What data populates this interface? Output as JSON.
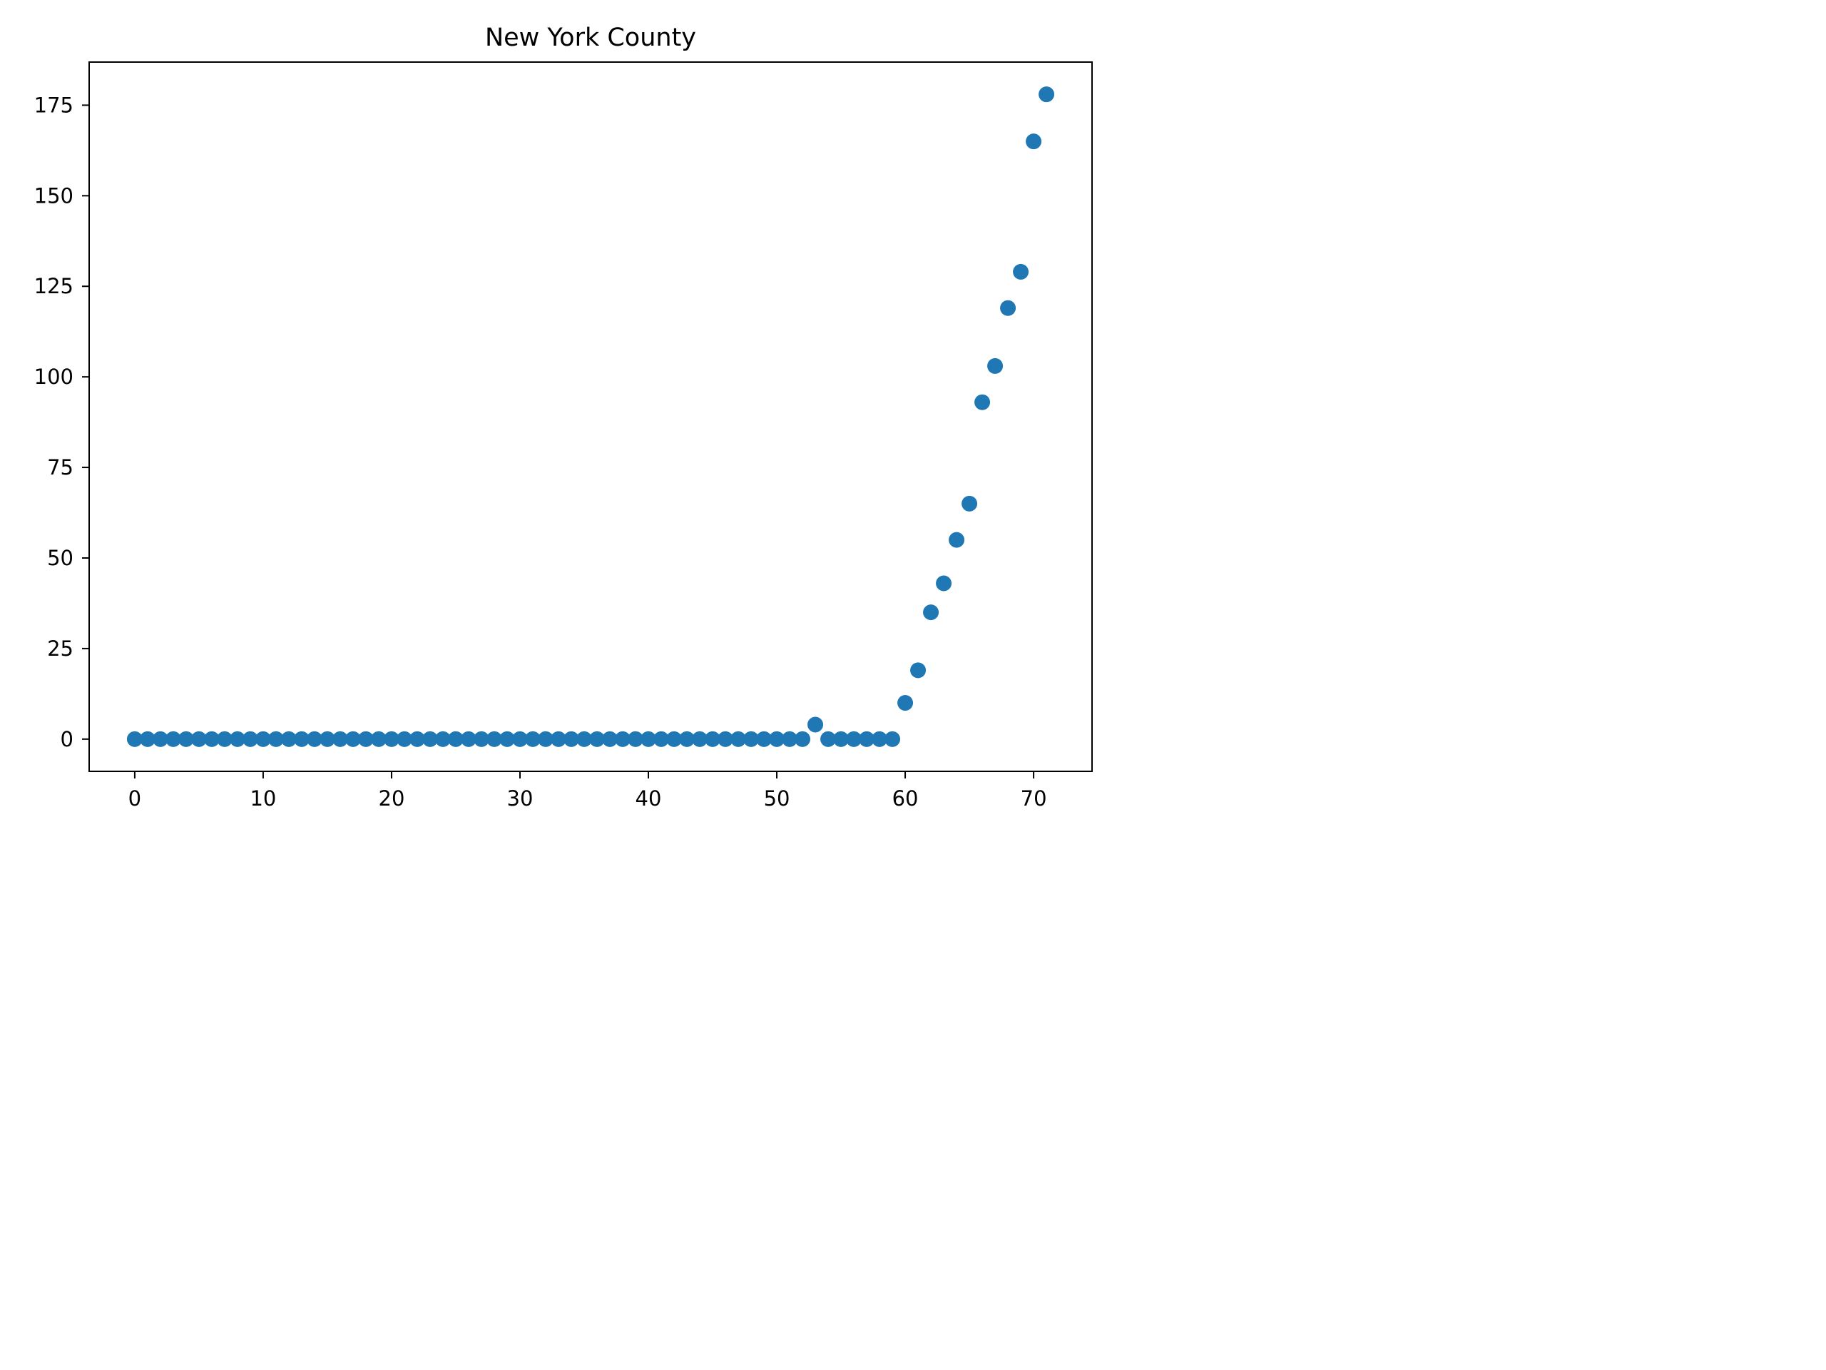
{
  "chart_data": {
    "type": "scatter",
    "title": "New York County",
    "xlabel": "",
    "ylabel": "",
    "xlim": [
      -3.55,
      74.55
    ],
    "ylim": [
      -8.9,
      186.9
    ],
    "xticks": [
      0,
      10,
      20,
      30,
      40,
      50,
      60,
      70
    ],
    "yticks": [
      0,
      25,
      50,
      75,
      100,
      125,
      150,
      175
    ],
    "grid": false,
    "color": "#1f77b4",
    "x": [
      0,
      1,
      2,
      3,
      4,
      5,
      6,
      7,
      8,
      9,
      10,
      11,
      12,
      13,
      14,
      15,
      16,
      17,
      18,
      19,
      20,
      21,
      22,
      23,
      24,
      25,
      26,
      27,
      28,
      29,
      30,
      31,
      32,
      33,
      34,
      35,
      36,
      37,
      38,
      39,
      40,
      41,
      42,
      43,
      44,
      45,
      46,
      47,
      48,
      49,
      50,
      51,
      52,
      53,
      54,
      55,
      56,
      57,
      58,
      59,
      60,
      61,
      62,
      63,
      64,
      65,
      66,
      67,
      68,
      69,
      70,
      71
    ],
    "y": [
      0,
      0,
      0,
      0,
      0,
      0,
      0,
      0,
      0,
      0,
      0,
      0,
      0,
      0,
      0,
      0,
      0,
      0,
      0,
      0,
      0,
      0,
      0,
      0,
      0,
      0,
      0,
      0,
      0,
      0,
      0,
      0,
      0,
      0,
      0,
      0,
      0,
      0,
      0,
      0,
      0,
      0,
      0,
      0,
      0,
      0,
      0,
      0,
      0,
      0,
      0,
      0,
      0,
      4,
      0,
      0,
      0,
      0,
      0,
      0,
      10,
      19,
      35,
      43,
      55,
      65,
      93,
      103,
      119,
      129,
      165,
      178
    ]
  }
}
